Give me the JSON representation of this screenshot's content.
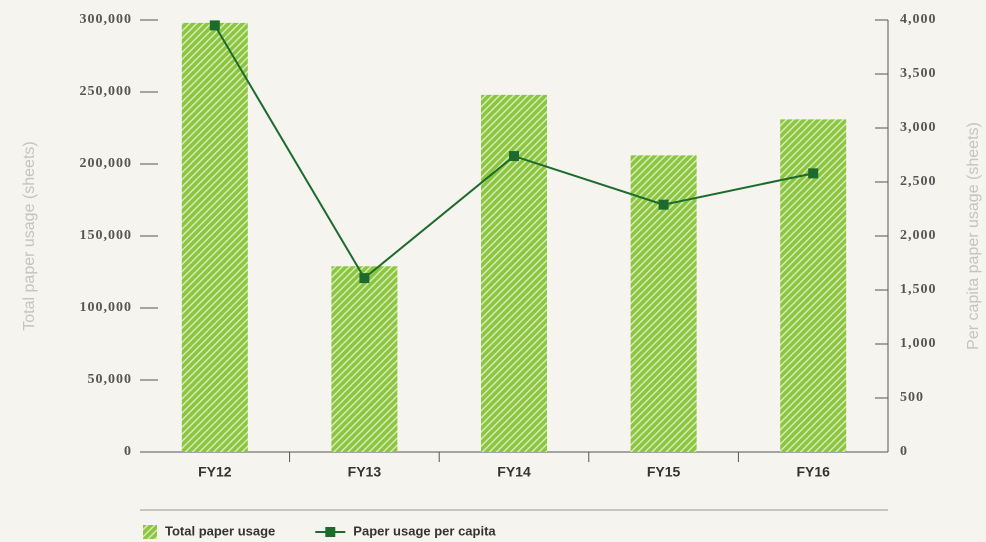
{
  "chart_data": {
    "type": "bar",
    "ylabel": "Total paper usage (sheets)",
    "y2label": "Per capita paper usage (sheets)",
    "categories": [
      "FY12",
      "FY13",
      "FY14",
      "FY15",
      "FY16"
    ],
    "series": [
      {
        "name": "Total paper usage",
        "type": "bar",
        "color": "#8cc63f",
        "values": [
          298000,
          129000,
          248000,
          206000,
          231000
        ]
      },
      {
        "name": "Paper usage per capita",
        "type": "line",
        "axis": "y2",
        "color": "#1d6b2c",
        "values": [
          3950,
          1610,
          2740,
          2290,
          2580
        ]
      }
    ],
    "ylim": [
      0,
      300000
    ],
    "yticks": [
      0,
      {
        "value": 50000,
        "label": "50,000"
      },
      {
        "value": 100000,
        "label": "100,000"
      },
      {
        "value": 150000,
        "label": "150,000"
      },
      {
        "value": 200000,
        "label": "200,000"
      },
      {
        "value": 250000,
        "label": "250,000"
      },
      {
        "value": 300000,
        "label": "300,000"
      }
    ],
    "y2lim": [
      0,
      4000
    ],
    "y2ticks": [
      0,
      500,
      {
        "value": 1000,
        "label": "1,000"
      },
      {
        "value": 1500,
        "label": "1,500"
      },
      {
        "value": 2000,
        "label": "2,000"
      },
      {
        "value": 2500,
        "label": "2,500"
      },
      {
        "value": 3000,
        "label": "3,000"
      },
      {
        "value": 3500,
        "label": "3,500"
      },
      {
        "value": 4000,
        "label": "4,000"
      }
    ],
    "grid": false
  }
}
